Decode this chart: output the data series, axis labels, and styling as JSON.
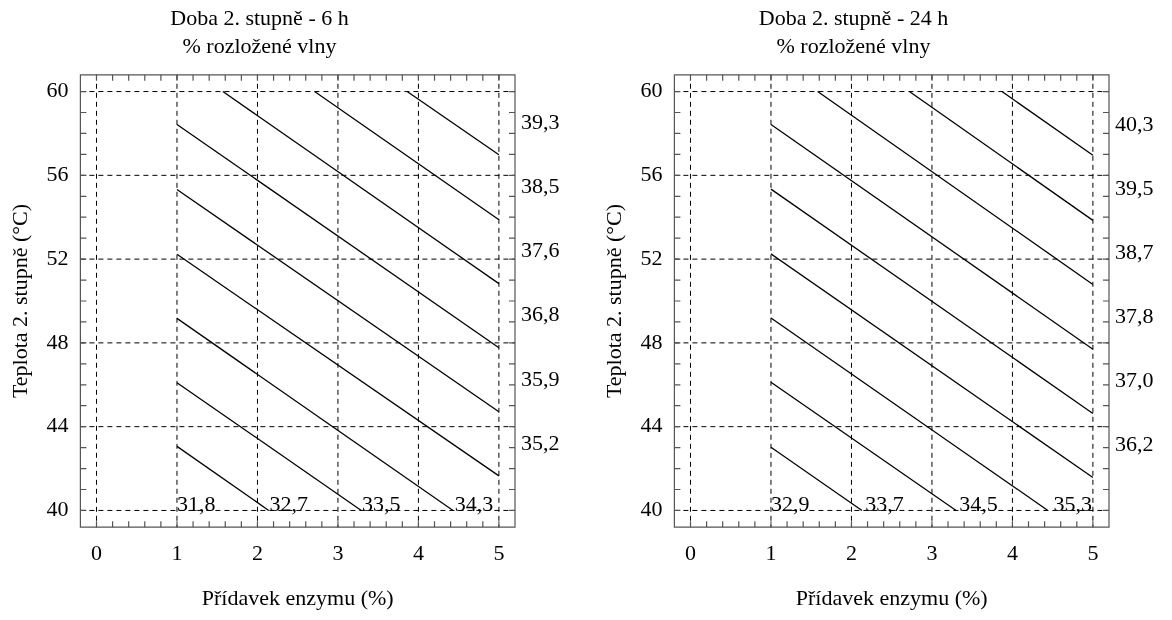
{
  "chart_data": [
    {
      "type": "line",
      "title": "Doba 2. stupně - 6 h",
      "subtitle": "% rozložené vlny",
      "xlabel": "Přídavek enzymu (%)",
      "ylabel": "Teplota 2. stupně (°C)",
      "xlim": [
        -0.2,
        5.2
      ],
      "ylim": [
        39.2,
        60.8
      ],
      "xticks": [
        0,
        {
          "value": 0.2,
          "label": null
        },
        {
          "value": 0.4,
          "label": null
        },
        {
          "value": 0.6,
          "label": null
        },
        {
          "value": 0.8,
          "label": null
        },
        1,
        {
          "value": 1.2,
          "label": null
        },
        {
          "value": 1.4,
          "label": null
        },
        {
          "value": 1.6,
          "label": null
        },
        {
          "value": 1.8,
          "label": null
        },
        2,
        {
          "value": 2.2,
          "label": null
        },
        {
          "value": 2.4,
          "label": null
        },
        {
          "value": 2.6,
          "label": null
        },
        {
          "value": 2.8,
          "label": null
        },
        3,
        {
          "value": 3.2,
          "label": null
        },
        {
          "value": 3.4,
          "label": null
        },
        {
          "value": 3.6,
          "label": null
        },
        {
          "value": 3.8,
          "label": null
        },
        4,
        {
          "value": 4.2,
          "label": null
        },
        {
          "value": 4.4,
          "label": null
        },
        {
          "value": 4.6,
          "label": null
        },
        {
          "value": 4.8,
          "label": null
        },
        5
      ],
      "yticks": [
        40,
        {
          "value": 41,
          "label": null
        },
        {
          "value": 42,
          "label": null
        },
        {
          "value": 43,
          "label": null
        },
        44,
        {
          "value": 45,
          "label": null
        },
        {
          "value": 46,
          "label": null
        },
        {
          "value": 47,
          "label": null
        },
        48,
        {
          "value": 49,
          "label": null
        },
        {
          "value": 50,
          "label": null
        },
        {
          "value": 51,
          "label": null
        },
        52,
        {
          "value": 53,
          "label": null
        },
        {
          "value": 54,
          "label": null
        },
        {
          "value": 55,
          "label": null
        },
        56,
        {
          "value": 57,
          "label": null
        },
        {
          "value": 58,
          "label": null
        },
        {
          "value": 59,
          "label": null
        },
        60
      ],
      "grid": true,
      "marker": "none",
      "series": [
        {
          "color": "#000000",
          "x": [
            1,
            2.14
          ],
          "values": [
            43.06,
            40
          ]
        },
        {
          "color": "#000000",
          "x": [
            1,
            3.29
          ],
          "values": [
            46.1,
            40
          ]
        },
        {
          "color": "#000000",
          "x": [
            1,
            4.43
          ],
          "values": [
            49.17,
            40
          ]
        },
        {
          "color": "#000000",
          "x": [
            1,
            5
          ],
          "values": [
            52.23,
            41.65
          ]
        },
        {
          "color": "#000000",
          "x": [
            1,
            5
          ],
          "values": [
            55.32,
            44.71
          ]
        },
        {
          "color": "#000000",
          "x": [
            1,
            5
          ],
          "values": [
            58.43,
            47.77
          ]
        },
        {
          "color": "#000000",
          "x": [
            1.57,
            5
          ],
          "values": [
            60,
            50.83
          ]
        },
        {
          "color": "#000000",
          "x": [
            2.71,
            5
          ],
          "values": [
            60,
            53.88
          ]
        },
        {
          "color": "#000000",
          "x": [
            3.86,
            5
          ],
          "values": [
            60,
            56.98
          ]
        }
      ],
      "annotations": [
        "31,8",
        "32,7",
        "33,5",
        "34,3",
        "35,2",
        "35,9",
        "36,8",
        "37,6",
        "38,5",
        "39,3"
      ]
    },
    {
      "type": "line",
      "title": "Doba 2. stupně - 24 h",
      "subtitle": "% rozložené vlny",
      "xlabel": "Přídavek enzymu (%)",
      "ylabel": "Teplota 2. stupně (°C)",
      "xlim": [
        -0.2,
        5.2
      ],
      "ylim": [
        39.2,
        60.8
      ],
      "xticks": [
        0,
        {
          "value": 0.2,
          "label": null
        },
        {
          "value": 0.4,
          "label": null
        },
        {
          "value": 0.6,
          "label": null
        },
        {
          "value": 0.8,
          "label": null
        },
        1,
        {
          "value": 1.2,
          "label": null
        },
        {
          "value": 1.4,
          "label": null
        },
        {
          "value": 1.6,
          "label": null
        },
        {
          "value": 1.8,
          "label": null
        },
        2,
        {
          "value": 2.2,
          "label": null
        },
        {
          "value": 2.4,
          "label": null
        },
        {
          "value": 2.6,
          "label": null
        },
        {
          "value": 2.8,
          "label": null
        },
        3,
        {
          "value": 3.2,
          "label": null
        },
        {
          "value": 3.4,
          "label": null
        },
        {
          "value": 3.6,
          "label": null
        },
        {
          "value": 3.8,
          "label": null
        },
        4,
        {
          "value": 4.2,
          "label": null
        },
        {
          "value": 4.4,
          "label": null
        },
        {
          "value": 4.6,
          "label": null
        },
        {
          "value": 4.8,
          "label": null
        },
        5
      ],
      "yticks": [
        40,
        {
          "value": 41,
          "label": null
        },
        {
          "value": 42,
          "label": null
        },
        {
          "value": 43,
          "label": null
        },
        44,
        {
          "value": 45,
          "label": null
        },
        {
          "value": 46,
          "label": null
        },
        {
          "value": 47,
          "label": null
        },
        48,
        {
          "value": 49,
          "label": null
        },
        {
          "value": 50,
          "label": null
        },
        {
          "value": 51,
          "label": null
        },
        52,
        {
          "value": 53,
          "label": null
        },
        {
          "value": 54,
          "label": null
        },
        {
          "value": 55,
          "label": null
        },
        56,
        {
          "value": 57,
          "label": null
        },
        {
          "value": 58,
          "label": null
        },
        {
          "value": 59,
          "label": null
        },
        60
      ],
      "grid": true,
      "marker": "none",
      "series": [
        {
          "color": "#000000",
          "x": [
            1,
            2.13
          ],
          "values": [
            43.02,
            40
          ]
        },
        {
          "color": "#000000",
          "x": [
            1,
            3.3
          ],
          "values": [
            46.12,
            40
          ]
        },
        {
          "color": "#000000",
          "x": [
            1,
            4.44
          ],
          "values": [
            49.19,
            40
          ]
        },
        {
          "color": "#000000",
          "x": [
            1,
            5
          ],
          "values": [
            52.25,
            41.57
          ]
        },
        {
          "color": "#000000",
          "x": [
            1,
            5
          ],
          "values": [
            55.34,
            44.63
          ]
        },
        {
          "color": "#000000",
          "x": [
            1,
            5
          ],
          "values": [
            58.43,
            47.7
          ]
        },
        {
          "color": "#000000",
          "x": [
            1.58,
            5
          ],
          "values": [
            60,
            50.79
          ]
        },
        {
          "color": "#000000",
          "x": [
            2.72,
            5
          ],
          "values": [
            60,
            53.85
          ]
        },
        {
          "color": "#000000",
          "x": [
            3.87,
            5
          ],
          "values": [
            60,
            56.96
          ]
        }
      ],
      "annotations": [
        "32,9",
        "33,7",
        "34,5",
        "35,3",
        "36,2",
        "37,0",
        "37,8",
        "38,7",
        "39,5",
        "40,3"
      ]
    }
  ]
}
